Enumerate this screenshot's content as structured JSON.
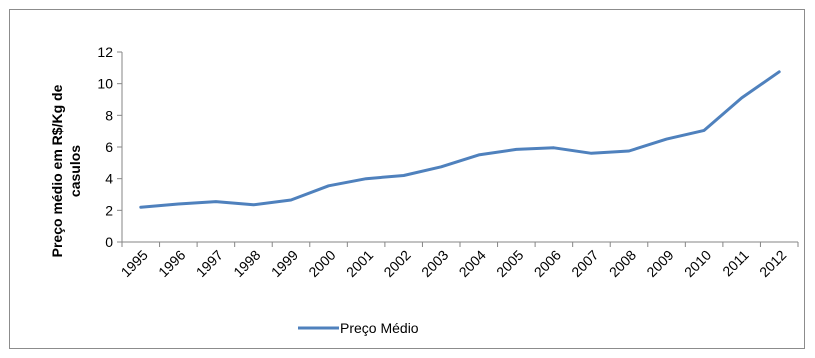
{
  "chart_data": {
    "type": "line",
    "title": "",
    "xlabel": "",
    "ylabel_lines": [
      "Preço médio em R$/Kg de",
      "casulos"
    ],
    "categories": [
      "1995",
      "1996",
      "1997",
      "1998",
      "1999",
      "2000",
      "2001",
      "2002",
      "2003",
      "2004",
      "2005",
      "2006",
      "2007",
      "2008",
      "2009",
      "2010",
      "2011",
      "2012"
    ],
    "series": [
      {
        "name": "Preço Médio",
        "color": "#4f81bd",
        "values": [
          2.2,
          2.4,
          2.55,
          2.35,
          2.65,
          3.55,
          4.0,
          4.2,
          4.75,
          5.5,
          5.85,
          5.95,
          5.6,
          5.75,
          6.5,
          7.05,
          9.1,
          10.75
        ]
      }
    ],
    "ylim": [
      0,
      12
    ],
    "yticks": [
      0,
      2,
      4,
      6,
      8,
      10,
      12
    ],
    "grid": false,
    "legend_position": "bottom"
  }
}
